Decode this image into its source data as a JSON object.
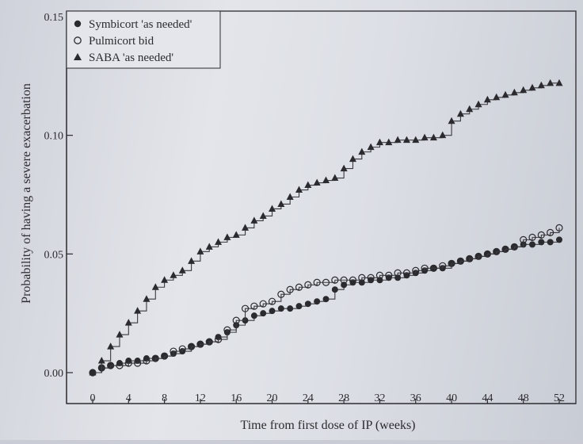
{
  "chart_data": {
    "type": "line",
    "title": "",
    "xlabel": "Time from first dose of IP (weeks)",
    "ylabel": "Probability of having a severe exacerbation",
    "xlim": [
      0,
      52
    ],
    "ylim": [
      0,
      0.15
    ],
    "xticks": [
      0,
      4,
      8,
      12,
      16,
      20,
      24,
      28,
      32,
      36,
      40,
      44,
      48,
      52
    ],
    "yticks": [
      0.0,
      0.05,
      0.1,
      0.15
    ],
    "ytick_labels": [
      "0.00",
      "0.05",
      "0.10",
      "0.15"
    ],
    "grid": false,
    "legend_position": "top-left",
    "series": [
      {
        "name": "Symbicort 'as needed'",
        "marker": "filled-circle",
        "x": [
          0,
          1,
          2,
          3,
          4,
          5,
          6,
          7,
          8,
          9,
          10,
          11,
          12,
          13,
          14,
          15,
          16,
          17,
          18,
          19,
          20,
          21,
          22,
          23,
          24,
          25,
          26,
          27,
          28,
          29,
          30,
          31,
          32,
          33,
          34,
          35,
          36,
          37,
          38,
          39,
          40,
          41,
          42,
          43,
          44,
          45,
          46,
          47,
          48,
          49,
          50,
          51,
          52
        ],
        "y": [
          0.0,
          0.002,
          0.003,
          0.004,
          0.005,
          0.005,
          0.006,
          0.006,
          0.007,
          0.008,
          0.009,
          0.011,
          0.012,
          0.013,
          0.015,
          0.017,
          0.02,
          0.022,
          0.024,
          0.025,
          0.026,
          0.027,
          0.027,
          0.028,
          0.029,
          0.03,
          0.031,
          0.035,
          0.037,
          0.038,
          0.038,
          0.039,
          0.039,
          0.04,
          0.04,
          0.041,
          0.042,
          0.043,
          0.044,
          0.044,
          0.046,
          0.047,
          0.048,
          0.049,
          0.05,
          0.051,
          0.052,
          0.053,
          0.054,
          0.054,
          0.055,
          0.055,
          0.056
        ]
      },
      {
        "name": "Pulmicort bid",
        "marker": "open-circle",
        "x": [
          0,
          1,
          2,
          3,
          4,
          5,
          6,
          7,
          8,
          9,
          10,
          11,
          12,
          13,
          14,
          15,
          16,
          17,
          18,
          19,
          20,
          21,
          22,
          23,
          24,
          25,
          26,
          27,
          28,
          29,
          30,
          31,
          32,
          33,
          34,
          35,
          36,
          37,
          38,
          39,
          40,
          41,
          42,
          43,
          44,
          45,
          46,
          47,
          48,
          49,
          50,
          51,
          52
        ],
        "y": [
          0.0,
          0.002,
          0.003,
          0.003,
          0.004,
          0.004,
          0.005,
          0.006,
          0.007,
          0.009,
          0.01,
          0.011,
          0.012,
          0.013,
          0.014,
          0.018,
          0.022,
          0.027,
          0.028,
          0.029,
          0.03,
          0.033,
          0.035,
          0.036,
          0.037,
          0.038,
          0.038,
          0.039,
          0.039,
          0.039,
          0.04,
          0.04,
          0.041,
          0.041,
          0.042,
          0.042,
          0.043,
          0.044,
          0.044,
          0.045,
          0.046,
          0.047,
          0.048,
          0.049,
          0.05,
          0.051,
          0.052,
          0.053,
          0.056,
          0.057,
          0.058,
          0.059,
          0.061
        ]
      },
      {
        "name": "SABA 'as needed'",
        "marker": "filled-triangle",
        "x": [
          0,
          1,
          2,
          3,
          4,
          5,
          6,
          7,
          8,
          9,
          10,
          11,
          12,
          13,
          14,
          15,
          16,
          17,
          18,
          19,
          20,
          21,
          22,
          23,
          24,
          25,
          26,
          27,
          28,
          29,
          30,
          31,
          32,
          33,
          34,
          35,
          36,
          37,
          38,
          39,
          40,
          41,
          42,
          43,
          44,
          45,
          46,
          47,
          48,
          49,
          50,
          51,
          52
        ],
        "y": [
          0.0,
          0.005,
          0.011,
          0.016,
          0.021,
          0.026,
          0.031,
          0.036,
          0.039,
          0.041,
          0.043,
          0.047,
          0.051,
          0.053,
          0.055,
          0.057,
          0.058,
          0.061,
          0.064,
          0.066,
          0.069,
          0.071,
          0.074,
          0.077,
          0.079,
          0.08,
          0.081,
          0.082,
          0.086,
          0.09,
          0.093,
          0.095,
          0.097,
          0.097,
          0.098,
          0.098,
          0.098,
          0.099,
          0.099,
          0.1,
          0.106,
          0.109,
          0.111,
          0.113,
          0.115,
          0.116,
          0.117,
          0.118,
          0.119,
          0.12,
          0.121,
          0.122,
          0.122
        ]
      }
    ]
  },
  "colors": {
    "ink": "#2b2b2f",
    "line": "#3a3a40",
    "paper": "#dcdfe5"
  }
}
